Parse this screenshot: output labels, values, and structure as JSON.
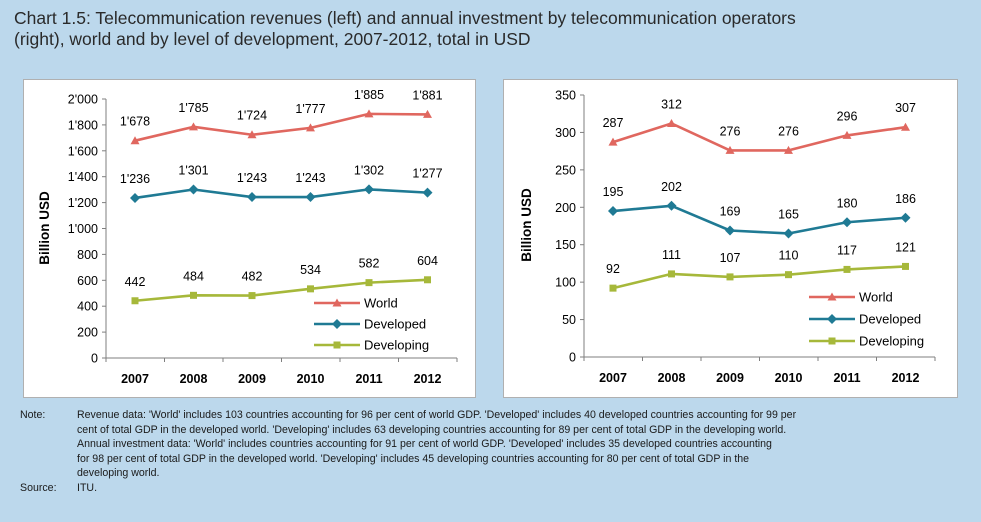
{
  "title": {
    "line1": "Chart 1.5: Telecommunication revenues (left) and annual investment by telecommunication operators",
    "line2": "(right), world and by level of development, 2007-2012, total in USD"
  },
  "colors": {
    "world": "#e0675f",
    "developed": "#1f7a94",
    "developing": "#a6b83a",
    "background": "#bcd8ec"
  },
  "chart_data": [
    {
      "type": "line",
      "title": "Telecommunication revenues",
      "ylabel": "Billion USD",
      "xlabel": "",
      "ylim": [
        0,
        2000
      ],
      "ystep": 200,
      "yticks": [
        "0",
        "200",
        "400",
        "600",
        "800",
        "1'000",
        "1'200",
        "1'400",
        "1'600",
        "1'800",
        "2'000"
      ],
      "categories": [
        "2007",
        "2008",
        "2009",
        "2010",
        "2011",
        "2012"
      ],
      "series": [
        {
          "name": "World",
          "marker": "triangle",
          "color": "#e0675f",
          "values": [
            1678,
            1785,
            1724,
            1777,
            1885,
            1881
          ],
          "labels": [
            "1'678",
            "1'785",
            "1'724",
            "1'777",
            "1'885",
            "1'881"
          ]
        },
        {
          "name": "Developed",
          "marker": "diamond",
          "color": "#1f7a94",
          "values": [
            1236,
            1301,
            1243,
            1243,
            1302,
            1277
          ],
          "labels": [
            "1'236",
            "1'301",
            "1'243",
            "1'243",
            "1'302",
            "1'277"
          ]
        },
        {
          "name": "Developing",
          "marker": "square",
          "color": "#a6b83a",
          "values": [
            442,
            484,
            482,
            534,
            582,
            604
          ],
          "labels": [
            "442",
            "484",
            "482",
            "534",
            "582",
            "604"
          ]
        }
      ],
      "legend": "bottom-right",
      "grid": false
    },
    {
      "type": "line",
      "title": "Annual investment by telecommunication operators",
      "ylabel": "Billion USD",
      "xlabel": "",
      "ylim": [
        0,
        350
      ],
      "ystep": 50,
      "yticks": [
        "0",
        "50",
        "100",
        "150",
        "200",
        "250",
        "300",
        "350"
      ],
      "categories": [
        "2007",
        "2008",
        "2009",
        "2010",
        "2011",
        "2012"
      ],
      "series": [
        {
          "name": "World",
          "marker": "triangle",
          "color": "#e0675f",
          "values": [
            287,
            312,
            276,
            276,
            296,
            307
          ],
          "labels": [
            "287",
            "312",
            "276",
            "276",
            "296",
            "307"
          ]
        },
        {
          "name": "Developed",
          "marker": "diamond",
          "color": "#1f7a94",
          "values": [
            195,
            202,
            169,
            165,
            180,
            186
          ],
          "labels": [
            "195",
            "202",
            "169",
            "165",
            "180",
            "186"
          ]
        },
        {
          "name": "Developing",
          "marker": "square",
          "color": "#a6b83a",
          "values": [
            92,
            111,
            107,
            110,
            117,
            121
          ],
          "labels": [
            "92",
            "111",
            "107",
            "110",
            "117",
            "121"
          ]
        }
      ],
      "legend": "bottom-right",
      "grid": false
    }
  ],
  "notes": {
    "note_label": "Note:",
    "note_lines": [
      "Revenue data: 'World' includes 103 countries accounting for 96 per cent of world GDP. 'Developed' includes 40 developed countries accounting for 99 per",
      "cent of total GDP in the developed world. 'Developing' includes 63 developing countries accounting for 89 per cent of total GDP in the developing world.",
      "Annual investment data: 'World' includes countries accounting for 91 per cent of world GDP. 'Developed' includes 35 developed countries accounting",
      "for 98 per cent of total GDP in the developed world. 'Developing' includes 45 developing countries accounting for 80 per cent of total GDP in the",
      "developing world."
    ],
    "source_label": "Source:",
    "source_text": "ITU."
  }
}
